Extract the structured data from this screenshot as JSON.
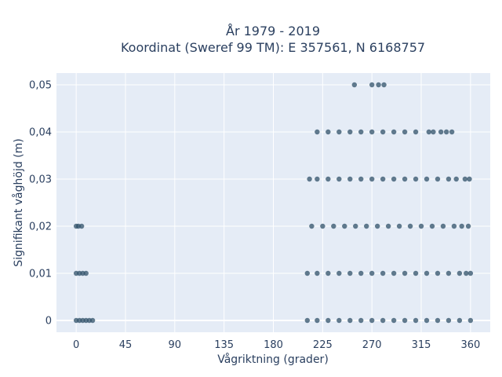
{
  "chart_data": {
    "type": "scatter",
    "title_line1": "År 1979 - 2019",
    "title_line2": "Koordinat (Sweref 99 TM): E 357561, N 6168757",
    "xlabel": "Vågriktning (grader)",
    "ylabel": "Signifikant våghöjd (m)",
    "xlim": [
      -18,
      378
    ],
    "ylim": [
      -0.0025,
      0.0525
    ],
    "x_ticks": [
      0,
      45,
      90,
      135,
      180,
      225,
      270,
      315,
      360
    ],
    "x_tick_labels": [
      "0",
      "45",
      "90",
      "135",
      "180",
      "225",
      "270",
      "315",
      "360"
    ],
    "y_ticks": [
      0,
      0.01,
      0.02,
      0.03,
      0.04,
      0.05
    ],
    "y_tick_labels": [
      "0",
      "0,01",
      "0,02",
      "0,03",
      "0,04",
      "0,05"
    ],
    "grid": true,
    "marker_color": "#2f5068",
    "background_color": "#e5ecf6",
    "series": [
      {
        "points": [
          [
            254,
            0.05
          ],
          [
            270,
            0.05
          ],
          [
            276,
            0.05
          ],
          [
            281,
            0.05
          ],
          [
            220,
            0.04
          ],
          [
            230,
            0.04
          ],
          [
            240,
            0.04
          ],
          [
            250,
            0.04
          ],
          [
            260,
            0.04
          ],
          [
            270,
            0.04
          ],
          [
            280,
            0.04
          ],
          [
            290,
            0.04
          ],
          [
            300,
            0.04
          ],
          [
            310,
            0.04
          ],
          [
            322,
            0.04
          ],
          [
            326,
            0.04
          ],
          [
            333,
            0.04
          ],
          [
            338,
            0.04
          ],
          [
            343,
            0.04
          ],
          [
            213,
            0.03
          ],
          [
            220,
            0.03
          ],
          [
            230,
            0.03
          ],
          [
            240,
            0.03
          ],
          [
            250,
            0.03
          ],
          [
            260,
            0.03
          ],
          [
            270,
            0.03
          ],
          [
            280,
            0.03
          ],
          [
            290,
            0.03
          ],
          [
            300,
            0.03
          ],
          [
            310,
            0.03
          ],
          [
            320,
            0.03
          ],
          [
            330,
            0.03
          ],
          [
            340,
            0.03
          ],
          [
            347,
            0.03
          ],
          [
            355,
            0.03
          ],
          [
            359,
            0.03
          ],
          [
            0,
            0.02
          ],
          [
            2,
            0.02
          ],
          [
            5,
            0.02
          ],
          [
            215,
            0.02
          ],
          [
            225,
            0.02
          ],
          [
            235,
            0.02
          ],
          [
            245,
            0.02
          ],
          [
            255,
            0.02
          ],
          [
            265,
            0.02
          ],
          [
            275,
            0.02
          ],
          [
            285,
            0.02
          ],
          [
            295,
            0.02
          ],
          [
            305,
            0.02
          ],
          [
            315,
            0.02
          ],
          [
            325,
            0.02
          ],
          [
            335,
            0.02
          ],
          [
            345,
            0.02
          ],
          [
            352,
            0.02
          ],
          [
            358,
            0.02
          ],
          [
            0,
            0.01
          ],
          [
            3,
            0.01
          ],
          [
            6,
            0.01
          ],
          [
            9,
            0.01
          ],
          [
            211,
            0.01
          ],
          [
            220,
            0.01
          ],
          [
            230,
            0.01
          ],
          [
            240,
            0.01
          ],
          [
            250,
            0.01
          ],
          [
            260,
            0.01
          ],
          [
            270,
            0.01
          ],
          [
            280,
            0.01
          ],
          [
            290,
            0.01
          ],
          [
            300,
            0.01
          ],
          [
            310,
            0.01
          ],
          [
            320,
            0.01
          ],
          [
            330,
            0.01
          ],
          [
            340,
            0.01
          ],
          [
            350,
            0.01
          ],
          [
            356,
            0.01
          ],
          [
            360,
            0.01
          ],
          [
            0,
            0
          ],
          [
            3,
            0
          ],
          [
            6,
            0
          ],
          [
            9,
            0
          ],
          [
            12,
            0
          ],
          [
            15,
            0
          ],
          [
            211,
            0
          ],
          [
            220,
            0
          ],
          [
            230,
            0
          ],
          [
            240,
            0
          ],
          [
            250,
            0
          ],
          [
            260,
            0
          ],
          [
            270,
            0
          ],
          [
            280,
            0
          ],
          [
            290,
            0
          ],
          [
            300,
            0
          ],
          [
            310,
            0
          ],
          [
            320,
            0
          ],
          [
            330,
            0
          ],
          [
            340,
            0
          ],
          [
            350,
            0
          ],
          [
            360,
            0
          ]
        ]
      }
    ]
  }
}
